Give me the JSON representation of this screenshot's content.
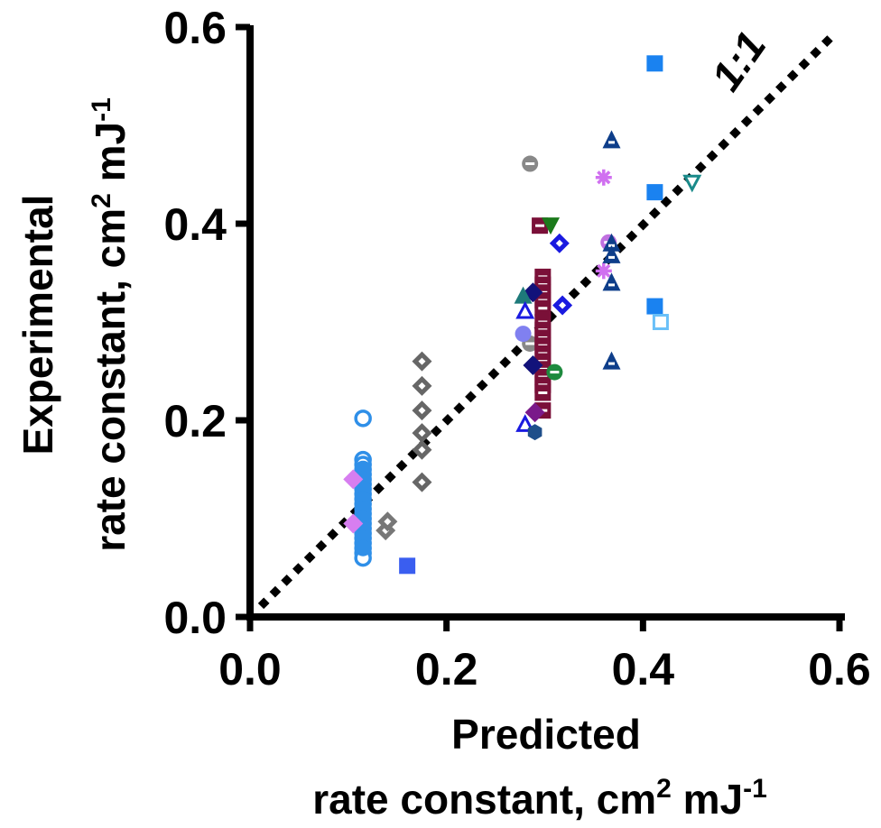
{
  "chart_data": {
    "type": "scatter",
    "xlim": [
      0,
      0.6
    ],
    "ylim": [
      0,
      0.6
    ],
    "x_ticks": [
      "0.0",
      "0.2",
      "0.4",
      "0.6"
    ],
    "y_ticks": [
      "0.0",
      "0.2",
      "0.4",
      "0.6"
    ],
    "xlabel_line1": "Predicted",
    "xlabel_line2": "rate constant, cm",
    "xlabel_sup": "2",
    "xlabel_tail": " mJ",
    "xlabel_tail_sup": "-1",
    "ylabel_line1": "Experimental",
    "ylabel_line2": "rate constant, cm",
    "ylabel_sup": "2",
    "ylabel_tail": " mJ",
    "ylabel_tail_sup": "-1",
    "reference_line": {
      "label": "1:1",
      "x": [
        0,
        0.6
      ],
      "y": [
        0,
        0.6
      ],
      "style": "dotted",
      "color": "#000000"
    },
    "grid": false,
    "series": [
      {
        "marker": "circle-open",
        "color": "#2f8fe8",
        "points": [
          [
            0.115,
            0.202
          ],
          [
            0.115,
            0.16
          ],
          [
            0.115,
            0.155
          ],
          [
            0.115,
            0.15
          ],
          [
            0.115,
            0.145
          ],
          [
            0.115,
            0.14
          ],
          [
            0.115,
            0.135
          ],
          [
            0.115,
            0.13
          ],
          [
            0.115,
            0.125
          ],
          [
            0.115,
            0.12
          ],
          [
            0.115,
            0.115
          ],
          [
            0.115,
            0.11
          ],
          [
            0.115,
            0.105
          ],
          [
            0.115,
            0.1
          ],
          [
            0.115,
            0.095
          ],
          [
            0.115,
            0.09
          ],
          [
            0.115,
            0.085
          ],
          [
            0.115,
            0.08
          ],
          [
            0.115,
            0.075
          ],
          [
            0.115,
            0.07
          ],
          [
            0.115,
            0.065
          ],
          [
            0.115,
            0.06
          ]
        ]
      },
      {
        "marker": "circle-filled",
        "color": "#2f8fe8",
        "points": [
          [
            0.115,
            0.15
          ],
          [
            0.115,
            0.14
          ],
          [
            0.115,
            0.13
          ],
          [
            0.115,
            0.12
          ],
          [
            0.115,
            0.11
          ],
          [
            0.115,
            0.1
          ],
          [
            0.115,
            0.09
          ],
          [
            0.115,
            0.08
          ],
          [
            0.115,
            0.07
          ]
        ]
      },
      {
        "marker": "diamond-filled",
        "color": "#d77ef0",
        "points": [
          [
            0.105,
            0.14
          ],
          [
            0.105,
            0.095
          ]
        ]
      },
      {
        "marker": "square-filled",
        "color": "#3a5ef0",
        "points": [
          [
            0.16,
            0.052
          ]
        ]
      },
      {
        "marker": "diamond-dot",
        "color": "#777777",
        "points": [
          [
            0.138,
            0.088
          ],
          [
            0.14,
            0.097
          ]
        ]
      },
      {
        "marker": "diamond-dot",
        "color": "#666666",
        "points": [
          [
            0.175,
            0.26
          ],
          [
            0.175,
            0.235
          ],
          [
            0.175,
            0.21
          ],
          [
            0.175,
            0.187
          ],
          [
            0.175,
            0.17
          ],
          [
            0.175,
            0.137
          ]
        ]
      },
      {
        "marker": "circle-half",
        "color": "#888888",
        "points": [
          [
            0.285,
            0.461
          ],
          [
            0.285,
            0.278
          ]
        ]
      },
      {
        "marker": "square-dash",
        "color": "#7a1038",
        "points": [
          [
            0.295,
            0.398
          ],
          [
            0.298,
            0.346
          ],
          [
            0.298,
            0.338
          ],
          [
            0.298,
            0.33
          ],
          [
            0.298,
            0.322
          ],
          [
            0.298,
            0.314
          ],
          [
            0.298,
            0.3
          ],
          [
            0.298,
            0.292
          ],
          [
            0.298,
            0.284
          ],
          [
            0.298,
            0.276
          ],
          [
            0.298,
            0.268
          ],
          [
            0.298,
            0.26
          ],
          [
            0.298,
            0.252
          ],
          [
            0.298,
            0.244
          ],
          [
            0.298,
            0.236
          ],
          [
            0.298,
            0.228
          ],
          [
            0.298,
            0.21
          ]
        ]
      },
      {
        "marker": "triangle-down-filled",
        "color": "#1b7a1b",
        "points": [
          [
            0.306,
            0.398
          ]
        ]
      },
      {
        "marker": "diamond-dot",
        "color": "#1a1ae0",
        "points": [
          [
            0.315,
            0.38
          ],
          [
            0.318,
            0.317
          ]
        ]
      },
      {
        "marker": "diamond-filled",
        "color": "#12127a",
        "points": [
          [
            0.288,
            0.33
          ],
          [
            0.288,
            0.256
          ]
        ]
      },
      {
        "marker": "triangle-filled",
        "color": "#1e7a7a",
        "points": [
          [
            0.278,
            0.327
          ]
        ]
      },
      {
        "marker": "triangle-open",
        "color": "#1a1ae0",
        "points": [
          [
            0.28,
            0.311
          ],
          [
            0.28,
            0.196
          ]
        ]
      },
      {
        "marker": "circle-filled",
        "color": "#8080f0",
        "points": [
          [
            0.278,
            0.288
          ]
        ]
      },
      {
        "marker": "circle-half",
        "color": "#1e8a3e",
        "points": [
          [
            0.31,
            0.249
          ]
        ]
      },
      {
        "marker": "diamond-filled",
        "color": "#7a1a8a",
        "points": [
          [
            0.29,
            0.208
          ]
        ]
      },
      {
        "marker": "hexagon-filled",
        "color": "#1e4e8a",
        "points": [
          [
            0.29,
            0.188
          ]
        ]
      },
      {
        "marker": "asterisk",
        "color": "#d070f0",
        "points": [
          [
            0.36,
            0.447
          ],
          [
            0.36,
            0.352
          ]
        ]
      },
      {
        "marker": "circle-half",
        "color": "#c070e0",
        "points": [
          [
            0.365,
            0.381
          ]
        ]
      },
      {
        "marker": "triangle-dash",
        "color": "#0e3e8a",
        "points": [
          [
            0.368,
            0.485
          ],
          [
            0.368,
            0.38
          ],
          [
            0.368,
            0.368
          ],
          [
            0.368,
            0.34
          ],
          [
            0.368,
            0.26
          ]
        ]
      },
      {
        "marker": "square-filled",
        "color": "#1a82f0",
        "points": [
          [
            0.412,
            0.563
          ],
          [
            0.412,
            0.432
          ],
          [
            0.412,
            0.316
          ]
        ]
      },
      {
        "marker": "square-open",
        "color": "#6ac0f8",
        "points": [
          [
            0.418,
            0.3
          ]
        ]
      },
      {
        "marker": "triangle-down-open",
        "color": "#1a8a8a",
        "points": [
          [
            0.45,
            0.442
          ]
        ]
      }
    ]
  }
}
